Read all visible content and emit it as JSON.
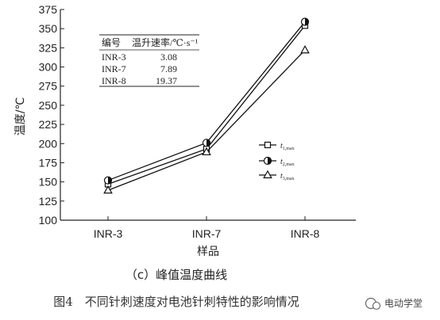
{
  "chart_data": {
    "type": "line",
    "ylabel": "温度/℃",
    "xlabel": "样品",
    "categories": [
      "INR-3",
      "INR-7",
      "INR-8"
    ],
    "ylim": [
      100,
      375
    ],
    "yticks": [
      100,
      125,
      150,
      175,
      200,
      225,
      250,
      275,
      300,
      325,
      350,
      375
    ],
    "series": [
      {
        "name_main": "t",
        "name_sub": "1,max",
        "marker": "square",
        "values": [
          147,
          193,
          354
        ]
      },
      {
        "name_main": "t",
        "name_sub": "2,max",
        "marker": "half-circle",
        "values": [
          152,
          201,
          359
        ]
      },
      {
        "name_main": "t",
        "name_sub": "3,max",
        "marker": "triangle",
        "values": [
          139,
          189,
          322
        ]
      }
    ],
    "legend_position": "right-middle",
    "inset_table": {
      "headers": [
        "编号",
        "温升速率/℃·s⁻¹"
      ],
      "rows": [
        [
          "INR-3",
          "3.08"
        ],
        [
          "INR-7",
          "7.89"
        ],
        [
          "INR-8",
          "19.37"
        ]
      ]
    }
  },
  "subcaption": "（c）峰值温度曲线",
  "caption": "图4　不同针刺速度对电池针刺特性的影响情况",
  "watermark": "电动学堂"
}
